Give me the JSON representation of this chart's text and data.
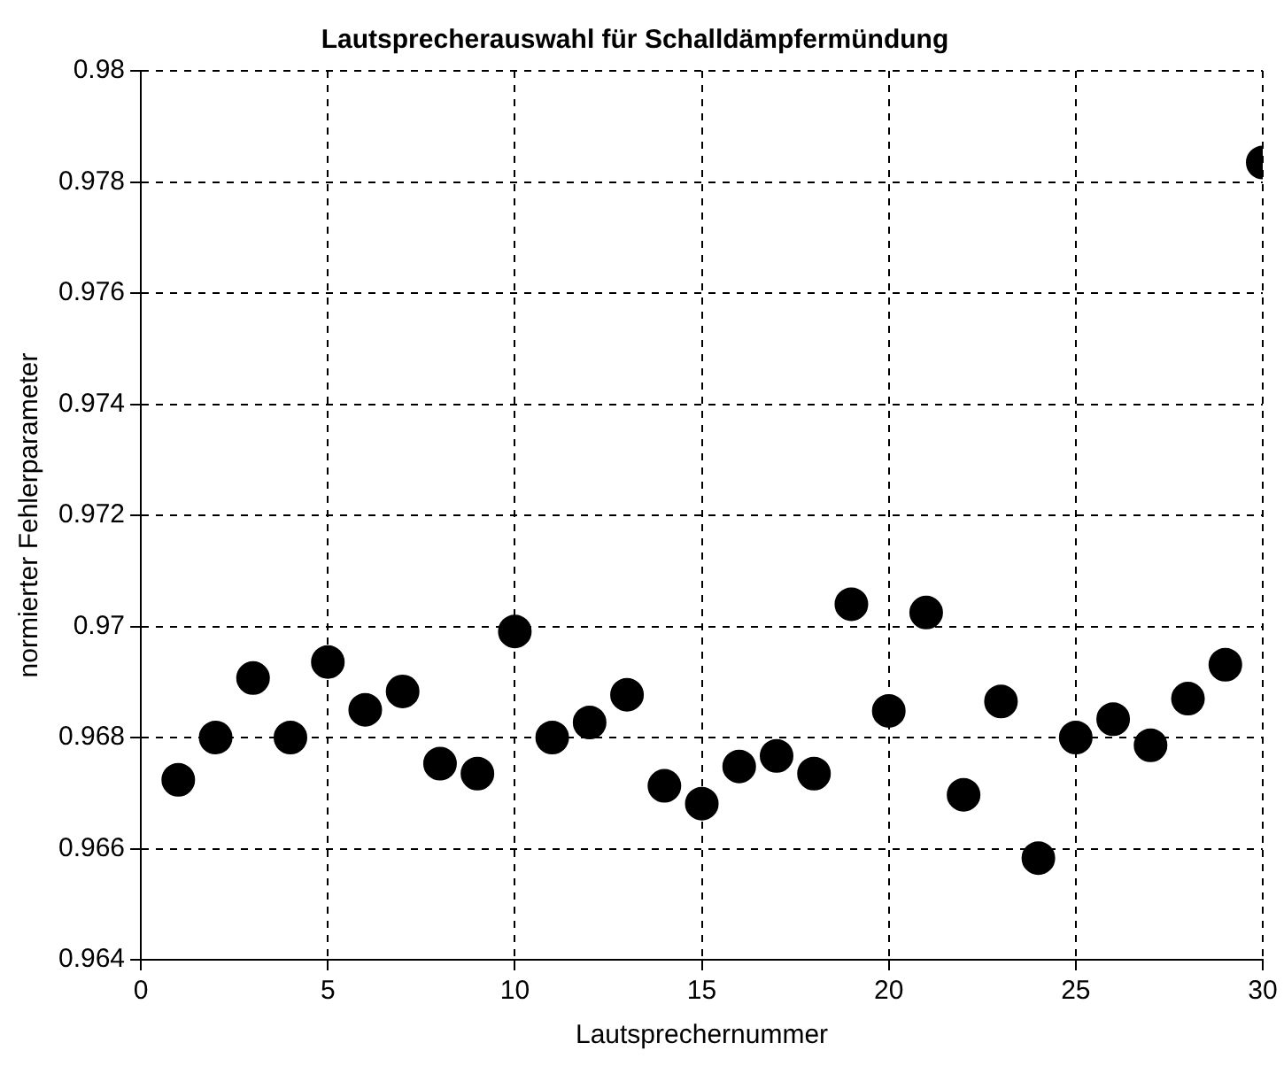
{
  "chart_data": {
    "type": "scatter",
    "title": "Lautsprecherauswahl für Schalldämpfermündung",
    "xlabel": "Lautsprechernummer",
    "ylabel": "normierter Fehlerparameter",
    "x": [
      1,
      2,
      3,
      4,
      5,
      6,
      7,
      8,
      9,
      10,
      11,
      12,
      13,
      14,
      15,
      16,
      17,
      18,
      19,
      20,
      21,
      22,
      23,
      24,
      25,
      26,
      27,
      28,
      29,
      30
    ],
    "series": [
      {
        "color": "#000000",
        "values": [
          0.96724,
          0.968,
          0.96907,
          0.968,
          0.96936,
          0.9685,
          0.96883,
          0.96753,
          0.96735,
          0.96991,
          0.968,
          0.96827,
          0.96877,
          0.96713,
          0.96681,
          0.96748,
          0.96767,
          0.96735,
          0.9704,
          0.96848,
          0.97025,
          0.96697,
          0.96865,
          0.96583,
          0.968,
          0.96833,
          0.96786,
          0.9687,
          0.96931,
          0.97835
        ]
      }
    ],
    "xlim": [
      0,
      30
    ],
    "xticks": [
      0,
      5,
      10,
      15,
      20,
      25,
      30
    ],
    "ylim": [
      0.964,
      0.98
    ],
    "yticks": [
      0.964,
      0.966,
      0.968,
      0.97,
      0.972,
      0.974,
      0.976,
      0.978,
      0.98
    ],
    "grid": true,
    "marker": "circle",
    "legend": false
  }
}
